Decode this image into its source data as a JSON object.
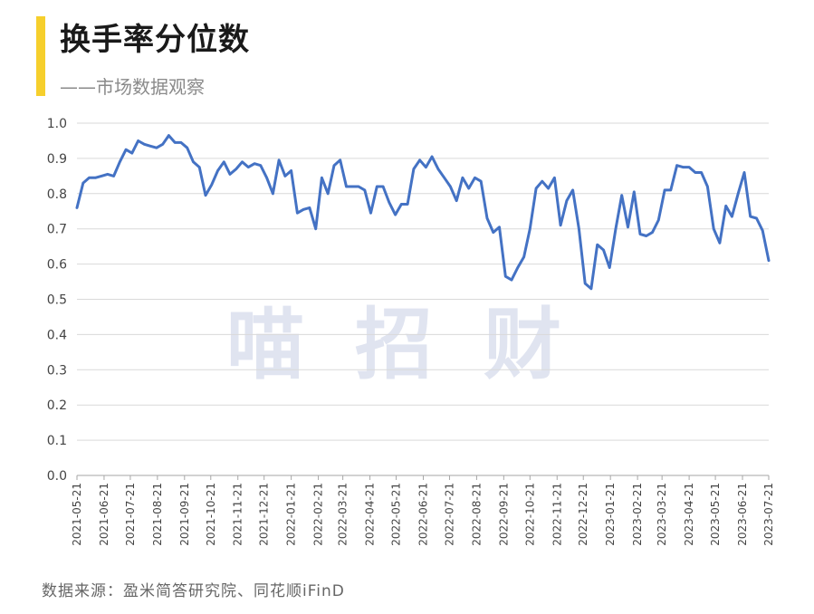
{
  "header": {
    "title": "换手率分位数",
    "subtitle": "——市场数据观察"
  },
  "watermark": "喵招财",
  "footer": {
    "source": "数据来源：盈米简答研究院、同花顺iFinD"
  },
  "colors": {
    "line": "#4472c4",
    "accent": "#f6cf2c",
    "grid": "#d9d9d9"
  },
  "chart_data": {
    "type": "line",
    "ylim": [
      0,
      1.0
    ],
    "yticks": [
      "0.0",
      "0.1",
      "0.2",
      "0.3",
      "0.4",
      "0.5",
      "0.6",
      "0.7",
      "0.8",
      "0.9",
      "1.0"
    ],
    "xtick_labels": [
      "2021-05-21",
      "2021-06-21",
      "2021-07-21",
      "2021-08-21",
      "2021-09-21",
      "2021-10-21",
      "2021-11-21",
      "2021-12-21",
      "2022-01-21",
      "2022-02-21",
      "2022-03-21",
      "2022-04-21",
      "2022-05-21",
      "2022-06-21",
      "2022-07-21",
      "2022-08-21",
      "2022-09-21",
      "2022-10-21",
      "2022-11-21",
      "2022-12-21",
      "2023-01-21",
      "2023-02-21",
      "2023-03-21",
      "2023-04-21",
      "2023-05-21",
      "2023-06-21",
      "2023-07-21"
    ],
    "grid": true,
    "series": [
      {
        "points": [
          [
            "2021-05-21",
            0.76
          ],
          [
            "2021-05-28",
            0.83
          ],
          [
            "2021-06-04",
            0.845
          ],
          [
            "2021-06-11",
            0.845
          ],
          [
            "2021-06-18",
            0.85
          ],
          [
            "2021-06-25",
            0.855
          ],
          [
            "2021-07-02",
            0.85
          ],
          [
            "2021-07-09",
            0.89
          ],
          [
            "2021-07-16",
            0.925
          ],
          [
            "2021-07-23",
            0.915
          ],
          [
            "2021-07-30",
            0.95
          ],
          [
            "2021-08-06",
            0.94
          ],
          [
            "2021-08-13",
            0.935
          ],
          [
            "2021-08-20",
            0.93
          ],
          [
            "2021-08-27",
            0.94
          ],
          [
            "2021-09-03",
            0.965
          ],
          [
            "2021-09-10",
            0.945
          ],
          [
            "2021-09-17",
            0.945
          ],
          [
            "2021-09-24",
            0.93
          ],
          [
            "2021-10-01",
            0.89
          ],
          [
            "2021-10-08",
            0.875
          ],
          [
            "2021-10-15",
            0.795
          ],
          [
            "2021-10-22",
            0.825
          ],
          [
            "2021-10-29",
            0.865
          ],
          [
            "2021-11-05",
            0.89
          ],
          [
            "2021-11-12",
            0.855
          ],
          [
            "2021-11-19",
            0.87
          ],
          [
            "2021-11-26",
            0.89
          ],
          [
            "2021-12-03",
            0.875
          ],
          [
            "2021-12-10",
            0.885
          ],
          [
            "2021-12-17",
            0.88
          ],
          [
            "2021-12-24",
            0.845
          ],
          [
            "2021-12-31",
            0.8
          ],
          [
            "2022-01-07",
            0.895
          ],
          [
            "2022-01-14",
            0.85
          ],
          [
            "2022-01-21",
            0.865
          ],
          [
            "2022-01-28",
            0.745
          ],
          [
            "2022-02-04",
            0.755
          ],
          [
            "2022-02-11",
            0.76
          ],
          [
            "2022-02-18",
            0.7
          ],
          [
            "2022-02-25",
            0.845
          ],
          [
            "2022-03-04",
            0.8
          ],
          [
            "2022-03-11",
            0.88
          ],
          [
            "2022-03-18",
            0.895
          ],
          [
            "2022-03-25",
            0.82
          ],
          [
            "2022-04-01",
            0.82
          ],
          [
            "2022-04-08",
            0.82
          ],
          [
            "2022-04-15",
            0.81
          ],
          [
            "2022-04-22",
            0.745
          ],
          [
            "2022-04-29",
            0.82
          ],
          [
            "2022-05-06",
            0.82
          ],
          [
            "2022-05-13",
            0.775
          ],
          [
            "2022-05-20",
            0.74
          ],
          [
            "2022-05-27",
            0.77
          ],
          [
            "2022-06-03",
            0.77
          ],
          [
            "2022-06-10",
            0.87
          ],
          [
            "2022-06-17",
            0.895
          ],
          [
            "2022-06-24",
            0.875
          ],
          [
            "2022-07-01",
            0.905
          ],
          [
            "2022-07-08",
            0.87
          ],
          [
            "2022-07-15",
            0.845
          ],
          [
            "2022-07-22",
            0.82
          ],
          [
            "2022-07-29",
            0.78
          ],
          [
            "2022-08-05",
            0.845
          ],
          [
            "2022-08-12",
            0.815
          ],
          [
            "2022-08-19",
            0.845
          ],
          [
            "2022-08-26",
            0.835
          ],
          [
            "2022-09-02",
            0.73
          ],
          [
            "2022-09-09",
            0.69
          ],
          [
            "2022-09-16",
            0.705
          ],
          [
            "2022-09-23",
            0.565
          ],
          [
            "2022-09-30",
            0.555
          ],
          [
            "2022-10-07",
            0.59
          ],
          [
            "2022-10-14",
            0.62
          ],
          [
            "2022-10-21",
            0.7
          ],
          [
            "2022-10-28",
            0.815
          ],
          [
            "2022-11-04",
            0.835
          ],
          [
            "2022-11-11",
            0.815
          ],
          [
            "2022-11-18",
            0.845
          ],
          [
            "2022-11-25",
            0.71
          ],
          [
            "2022-12-02",
            0.78
          ],
          [
            "2022-12-09",
            0.81
          ],
          [
            "2022-12-16",
            0.7
          ],
          [
            "2022-12-23",
            0.545
          ],
          [
            "2022-12-30",
            0.53
          ],
          [
            "2023-01-06",
            0.655
          ],
          [
            "2023-01-13",
            0.64
          ],
          [
            "2023-01-20",
            0.59
          ],
          [
            "2023-01-27",
            0.7
          ],
          [
            "2023-02-03",
            0.795
          ],
          [
            "2023-02-10",
            0.705
          ],
          [
            "2023-02-17",
            0.805
          ],
          [
            "2023-02-24",
            0.685
          ],
          [
            "2023-03-03",
            0.68
          ],
          [
            "2023-03-10",
            0.69
          ],
          [
            "2023-03-17",
            0.725
          ],
          [
            "2023-03-24",
            0.81
          ],
          [
            "2023-03-31",
            0.81
          ],
          [
            "2023-04-07",
            0.88
          ],
          [
            "2023-04-14",
            0.875
          ],
          [
            "2023-04-21",
            0.875
          ],
          [
            "2023-04-28",
            0.86
          ],
          [
            "2023-05-05",
            0.86
          ],
          [
            "2023-05-12",
            0.82
          ],
          [
            "2023-05-19",
            0.7
          ],
          [
            "2023-05-26",
            0.66
          ],
          [
            "2023-06-02",
            0.765
          ],
          [
            "2023-06-09",
            0.735
          ],
          [
            "2023-06-16",
            0.8
          ],
          [
            "2023-06-23",
            0.86
          ],
          [
            "2023-06-30",
            0.735
          ],
          [
            "2023-07-07",
            0.73
          ],
          [
            "2023-07-14",
            0.695
          ],
          [
            "2023-07-21",
            0.61
          ]
        ]
      }
    ]
  }
}
